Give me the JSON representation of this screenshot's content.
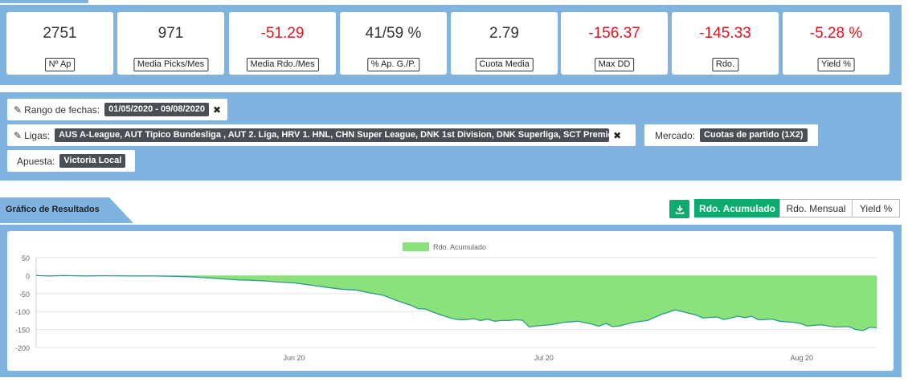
{
  "stats": [
    {
      "value": "2751",
      "label": "Nº Ap",
      "negative": false
    },
    {
      "value": "971",
      "label": "Media Picks/Mes",
      "negative": false
    },
    {
      "value": "-51.29",
      "label": "Media Rdo./Mes",
      "negative": true
    },
    {
      "value": "41/59 %",
      "label": "% Ap. G./P.",
      "negative": false
    },
    {
      "value": "2.79",
      "label": "Cuota Media",
      "negative": false
    },
    {
      "value": "-156.37",
      "label": "Max DD",
      "negative": true
    },
    {
      "value": "-145.33",
      "label": "Rdo.",
      "negative": true
    },
    {
      "value": "-5.28 %",
      "label": "Yield %",
      "negative": true
    }
  ],
  "filters": {
    "date": {
      "label": "Rango de fechas:",
      "value": "01/05/2020 - 09/08/2020"
    },
    "leagues": {
      "label": "Ligas:",
      "value": "AUS A-League, AUT Tipico Bundesliga , AUT 2. Liga, HRV 1. HNL, CHN Super League, DNK 1st Division, DNK Superliga, SCT Premiership ..."
    },
    "market": {
      "label": "Mercado:",
      "value": "Cuotas de partido (1X2)"
    },
    "bet": {
      "label": "Apuesta:",
      "value": "Victoria Local"
    }
  },
  "section": {
    "title": "Gráfico de Resultados"
  },
  "toolbar": {
    "download_icon": "download-icon",
    "tabs": [
      {
        "label": "Rdo. Acumulado",
        "active": true
      },
      {
        "label": "Rdo. Mensual",
        "active": false
      },
      {
        "label": "Yield %",
        "active": false
      }
    ]
  },
  "colors": {
    "accent": "#0dab6e",
    "band": "#7fb4e0",
    "negative": "#e8141b",
    "area_fill": "#8ce27a",
    "area_line": "#2a9a8c"
  },
  "chart_data": {
    "type": "area",
    "legend": "Rdo. Acumulado",
    "legend_position": "top-center",
    "ylim": [
      -200,
      50
    ],
    "yticks": [
      50,
      0,
      -50,
      -100,
      -150,
      -200
    ],
    "xticks": [
      "Jun 20",
      "Jul 20",
      "Aug 20"
    ],
    "xtick_days": [
      31,
      61,
      92
    ],
    "days_total": 101,
    "series": [
      {
        "name": "Rdo. Acumulado",
        "points": [
          [
            0,
            0
          ],
          [
            2,
            -1
          ],
          [
            4,
            0
          ],
          [
            7,
            -1
          ],
          [
            10,
            -0.5
          ],
          [
            14,
            -1
          ],
          [
            17,
            -1
          ],
          [
            20,
            -2
          ],
          [
            23,
            -4
          ],
          [
            26,
            -8
          ],
          [
            29,
            -12
          ],
          [
            31,
            -13
          ],
          [
            33,
            -15
          ],
          [
            35,
            -18
          ],
          [
            37,
            -20
          ],
          [
            39,
            -25
          ],
          [
            42,
            -33
          ],
          [
            44,
            -38
          ],
          [
            46,
            -40
          ],
          [
            48,
            -48
          ],
          [
            50,
            -55
          ],
          [
            52,
            -70
          ],
          [
            54,
            -83
          ],
          [
            55,
            -92
          ],
          [
            56,
            -93
          ],
          [
            58,
            -108
          ],
          [
            60,
            -120
          ],
          [
            61,
            -123
          ],
          [
            62,
            -122
          ],
          [
            63,
            -120
          ],
          [
            64,
            -125
          ],
          [
            65,
            -121
          ],
          [
            66,
            -127
          ],
          [
            67,
            -125
          ],
          [
            68,
            -125
          ],
          [
            69,
            -123
          ],
          [
            70,
            -124
          ],
          [
            71,
            -143
          ],
          [
            72,
            -140
          ],
          [
            74,
            -137
          ],
          [
            76,
            -130
          ],
          [
            78,
            -127
          ],
          [
            80,
            -135
          ],
          [
            81,
            -141
          ],
          [
            82,
            -133
          ],
          [
            83,
            -142
          ],
          [
            84,
            -140
          ],
          [
            86,
            -130
          ],
          [
            88,
            -125
          ],
          [
            90,
            -108
          ],
          [
            91,
            -102
          ],
          [
            92,
            -95
          ],
          [
            93,
            -100
          ],
          [
            95,
            -110
          ],
          [
            96,
            -118
          ],
          [
            98,
            -115
          ],
          [
            99,
            -122
          ],
          [
            100,
            -118
          ],
          [
            101,
            -113
          ],
          [
            102,
            -117
          ],
          [
            103,
            -113
          ],
          [
            104,
            -123
          ],
          [
            106,
            -121
          ],
          [
            107,
            -127
          ],
          [
            109,
            -130
          ],
          [
            110,
            -133
          ],
          [
            111,
            -140
          ],
          [
            113,
            -137
          ],
          [
            115,
            -143
          ],
          [
            117,
            -142
          ],
          [
            118,
            -150
          ],
          [
            119,
            -153
          ],
          [
            120,
            -144
          ],
          [
            121,
            -145
          ]
        ]
      }
    ]
  }
}
